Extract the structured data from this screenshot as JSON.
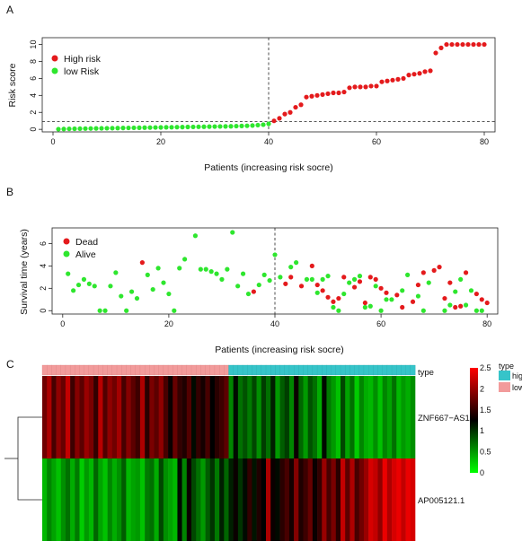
{
  "panels": {
    "A": {
      "letter": "A",
      "chart_data": {
        "type": "scatter",
        "xlabel": "Patients (increasing risk socre)",
        "ylabel": "Risk score",
        "xlim": [
          -2,
          82
        ],
        "ylim": [
          -0.3,
          10.8
        ],
        "xticks": [
          0,
          20,
          40,
          60,
          80
        ],
        "yticks": [
          0,
          2,
          4,
          6,
          8,
          10
        ],
        "cutoff_x": 40,
        "cutoff_y": 0.9,
        "legend": {
          "position": "top-left",
          "items": [
            {
              "label": "High risk",
              "color": "#e41a1c"
            },
            {
              "label": "low Risk",
              "color": "#2ee62e"
            }
          ]
        },
        "series": [
          {
            "name": "low Risk",
            "color": "#2ee62e",
            "x": [
              1,
              2,
              3,
              4,
              5,
              6,
              7,
              8,
              9,
              10,
              11,
              12,
              13,
              14,
              15,
              16,
              17,
              18,
              19,
              20,
              21,
              22,
              23,
              24,
              25,
              26,
              27,
              28,
              29,
              30,
              31,
              32,
              33,
              34,
              35,
              36,
              37,
              38,
              39,
              40
            ],
            "y": [
              0.02,
              0.04,
              0.06,
              0.07,
              0.08,
              0.09,
              0.1,
              0.11,
              0.12,
              0.13,
              0.14,
              0.15,
              0.16,
              0.17,
              0.18,
              0.19,
              0.2,
              0.21,
              0.22,
              0.23,
              0.24,
              0.25,
              0.26,
              0.27,
              0.28,
              0.29,
              0.3,
              0.31,
              0.32,
              0.33,
              0.34,
              0.35,
              0.36,
              0.38,
              0.4,
              0.42,
              0.45,
              0.5,
              0.55,
              0.65
            ]
          },
          {
            "name": "High risk",
            "color": "#e41a1c",
            "x": [
              41,
              42,
              43,
              44,
              45,
              46,
              47,
              48,
              49,
              50,
              51,
              52,
              53,
              54,
              55,
              56,
              57,
              58,
              59,
              60,
              61,
              62,
              63,
              64,
              65,
              66,
              67,
              68,
              69,
              70,
              71,
              72,
              73,
              74,
              75,
              76,
              77,
              78,
              79,
              80
            ],
            "y": [
              1.0,
              1.3,
              1.8,
              2.0,
              2.6,
              2.9,
              3.8,
              3.9,
              4.0,
              4.1,
              4.2,
              4.3,
              4.3,
              4.4,
              4.9,
              5.0,
              5.0,
              5.0,
              5.1,
              5.1,
              5.6,
              5.7,
              5.8,
              5.9,
              6.0,
              6.4,
              6.5,
              6.6,
              6.8,
              6.9,
              9.0,
              9.6,
              10.0,
              10.0,
              10.0,
              10.0,
              10.0,
              10.0,
              10.0,
              10.0
            ]
          }
        ]
      }
    },
    "B": {
      "letter": "B",
      "chart_data": {
        "type": "scatter",
        "xlabel": "Patients (increasing risk socre)",
        "ylabel": "Survival time (years)",
        "xlim": [
          -2,
          82
        ],
        "ylim": [
          -0.3,
          7.4
        ],
        "xticks": [
          0,
          20,
          40,
          60,
          80
        ],
        "yticks": [
          0,
          2,
          4,
          6
        ],
        "cutoff_x": 40,
        "legend": {
          "position": "top-left",
          "items": [
            {
              "label": "Dead",
              "color": "#e41a1c"
            },
            {
              "label": "Alive",
              "color": "#2ee62e"
            }
          ]
        },
        "series": [
          {
            "name": "Alive",
            "color": "#2ee62e",
            "x": [
              1,
              2,
              3,
              4,
              5,
              6,
              7,
              8,
              9,
              10,
              11,
              12,
              13,
              14,
              16,
              17,
              18,
              19,
              20,
              21,
              22,
              23,
              25,
              26,
              27,
              28,
              29,
              30,
              31,
              32,
              33,
              34,
              35,
              37,
              38,
              39,
              40,
              41,
              43,
              44,
              46,
              47,
              48,
              49,
              50,
              51,
              52,
              53,
              54,
              55,
              56,
              57,
              58,
              59,
              60,
              61,
              62,
              64,
              65,
              67,
              68,
              69,
              72,
              73,
              74,
              75,
              76,
              77,
              78,
              79
            ],
            "y": [
              3.3,
              1.8,
              2.3,
              2.8,
              2.4,
              2.2,
              0.0,
              0.0,
              2.2,
              3.4,
              1.3,
              0.0,
              1.7,
              1.1,
              3.2,
              1.9,
              3.8,
              2.5,
              1.5,
              0.0,
              3.8,
              4.6,
              6.7,
              3.7,
              3.7,
              3.5,
              3.3,
              2.8,
              3.7,
              7.0,
              2.2,
              3.3,
              1.5,
              2.3,
              3.2,
              2.7,
              5.0,
              3.0,
              3.9,
              4.3,
              2.8,
              2.8,
              1.6,
              2.8,
              3.1,
              0.3,
              0.0,
              1.5,
              2.5,
              2.8,
              3.1,
              0.3,
              0.4,
              2.2,
              0.0,
              1.0,
              1.0,
              1.8,
              3.2,
              1.3,
              0.0,
              2.5,
              0.0,
              0.5,
              1.7,
              2.8,
              0.5,
              1.8,
              0.0,
              0.0
            ]
          },
          {
            "name": "Dead",
            "color": "#e41a1c",
            "x": [
              15,
              36,
              42,
              43,
              45,
              47,
              48,
              49,
              50,
              51,
              52,
              53,
              55,
              56,
              57,
              58,
              59,
              60,
              61,
              63,
              64,
              66,
              67,
              68,
              70,
              71,
              72,
              73,
              74,
              75,
              76,
              78,
              79,
              80
            ],
            "y": [
              4.3,
              1.7,
              2.4,
              3.0,
              2.2,
              4.0,
              2.3,
              1.8,
              1.2,
              0.8,
              1.1,
              3.0,
              2.1,
              2.6,
              0.7,
              3.0,
              2.8,
              2.0,
              1.6,
              1.4,
              0.3,
              0.8,
              2.3,
              3.4,
              3.6,
              3.9,
              1.1,
              2.5,
              0.3,
              0.4,
              3.4,
              1.5,
              1.0,
              0.7
            ]
          }
        ]
      }
    },
    "C": {
      "letter": "C",
      "chart_data": {
        "type": "heatmap",
        "rows": [
          "ZNF667−AS1",
          "AP005121.1"
        ],
        "annotation_title": "type",
        "annotation": {
          "low_count": 40,
          "high_count": 40,
          "legend": [
            {
              "label": "high",
              "color": "#36c4c9"
            },
            {
              "label": "low",
              "color": "#f29b9b"
            }
          ],
          "legend_title": "type"
        },
        "scale": {
          "min": 0,
          "max": 2.5,
          "ticks": [
            0,
            0.5,
            1,
            1.5,
            2,
            2.5
          ],
          "colors": [
            "#00ff00",
            "#000000",
            "#ff0000"
          ]
        },
        "values": [
          [
            1.8,
            2.1,
            1.6,
            1.95,
            1.75,
            2.2,
            1.55,
            1.9,
            1.7,
            2.0,
            1.85,
            1.5,
            2.15,
            1.65,
            1.95,
            1.8,
            2.05,
            1.6,
            1.9,
            1.7,
            1.55,
            2.1,
            1.45,
            1.85,
            1.7,
            1.95,
            1.6,
            1.3,
            1.75,
            1.5,
            1.4,
            1.65,
            1.2,
            1.5,
            1.35,
            1.6,
            1.25,
            1.45,
            1.55,
            1.7,
            0.6,
            1.2,
            0.7,
            0.85,
            0.65,
            0.9,
            0.55,
            0.95,
            0.7,
            1.1,
            0.5,
            0.8,
            0.95,
            0.6,
            1.3,
            0.75,
            0.5,
            0.85,
            0.7,
            0.4,
            1.2,
            0.65,
            0.5,
            0.3,
            0.9,
            0.45,
            0.7,
            0.25,
            0.6,
            0.4,
            0.35,
            0.55,
            0.3,
            0.6,
            0.45,
            0.7,
            0.35,
            0.5,
            0.4,
            0.55
          ],
          [
            0.35,
            0.6,
            0.45,
            0.3,
            0.55,
            0.7,
            0.4,
            0.65,
            0.25,
            0.5,
            0.35,
            0.75,
            0.45,
            0.3,
            0.6,
            0.4,
            0.55,
            0.8,
            0.35,
            0.45,
            0.5,
            0.3,
            0.65,
            0.7,
            0.4,
            0.9,
            0.55,
            0.45,
            0.35,
            1.2,
            0.6,
            1.3,
            0.9,
            0.7,
            0.5,
            0.8,
            1.0,
            0.65,
            1.1,
            0.75,
            1.1,
            1.3,
            1.0,
            1.2,
            1.5,
            1.15,
            1.4,
            1.25,
            2.1,
            1.3,
            1.2,
            1.45,
            1.6,
            1.35,
            1.9,
            1.4,
            1.55,
            1.75,
            1.3,
            1.5,
            2.0,
            1.6,
            1.85,
            1.45,
            2.2,
            1.7,
            2.1,
            1.6,
            1.8,
            2.0,
            2.3,
            2.2,
            1.95,
            2.4,
            2.1,
            2.3,
            2.4,
            2.2,
            2.4,
            2.3
          ]
        ]
      }
    }
  }
}
